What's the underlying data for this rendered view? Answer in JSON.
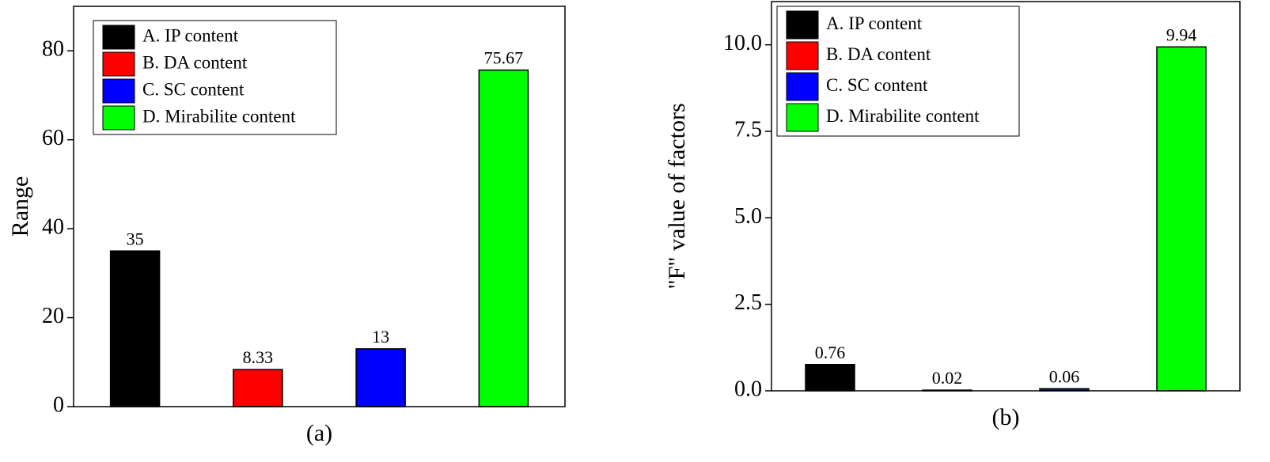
{
  "chart_data": [
    {
      "type": "bar",
      "ylabel": "Range",
      "xlabel": "(a)",
      "categories": [
        "A. IP content",
        "B. DA content",
        "C. SC content",
        "D. Mirabilite content"
      ],
      "values": [
        35,
        8.33,
        13,
        75.67
      ],
      "colors": [
        "#000000",
        "#ff0000",
        "#0000ff",
        "#00ff00"
      ],
      "ylim": [
        0,
        90
      ],
      "yticks": [
        0,
        20,
        40,
        60,
        80
      ]
    },
    {
      "type": "bar",
      "ylabel": "\"F\" value of factors",
      "xlabel": "(b)",
      "categories": [
        "A. IP content",
        "B. DA content",
        "C. SC content",
        "D. Mirabilite content"
      ],
      "values": [
        0.76,
        0.02,
        0.06,
        9.94
      ],
      "colors": [
        "#000000",
        "#ff0000",
        "#0000ff",
        "#00ff00"
      ],
      "ylim": [
        0,
        11.25
      ],
      "yticks": [
        {
          "value": 0,
          "label": "0.0"
        },
        {
          "value": 2.5,
          "label": "2.5"
        },
        {
          "value": 5,
          "label": "5.0"
        },
        {
          "value": 7.5,
          "label": "7.5"
        },
        {
          "value": 10,
          "label": "10.0"
        }
      ]
    }
  ]
}
